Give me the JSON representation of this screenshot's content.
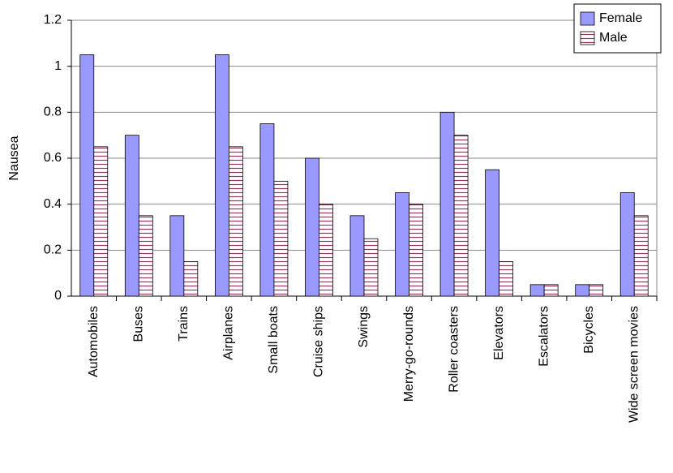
{
  "chart_data": {
    "type": "bar",
    "y_label": "Nausea",
    "categories": [
      "Automobiles",
      "Buses",
      "Trains",
      "Airplanes",
      "Small boats",
      "Cruise ships",
      "Swings",
      "Merry-go-rounds",
      "Roller coasters",
      "Elevators",
      "Escalators",
      "Bicycles",
      "Wide screen movies"
    ],
    "series": [
      {
        "name": "Female",
        "color": "#9999ff",
        "pattern": "solid",
        "values": [
          1.05,
          0.7,
          0.35,
          1.05,
          0.75,
          0.6,
          0.35,
          0.45,
          0.8,
          0.55,
          0.05,
          0.05,
          0.45
        ]
      },
      {
        "name": "Male",
        "color": "#993366",
        "pattern": "horizontal-stripes",
        "values": [
          0.65,
          0.35,
          0.15,
          0.65,
          0.5,
          0.4,
          0.25,
          0.4,
          0.7,
          0.15,
          0.05,
          0.05,
          0.35
        ]
      }
    ],
    "ylim": [
      0,
      1.2
    ],
    "yticks": [
      0,
      0.2,
      0.4,
      0.6,
      0.8,
      1,
      1.2
    ],
    "grid": true,
    "legend_position": "upper right"
  }
}
